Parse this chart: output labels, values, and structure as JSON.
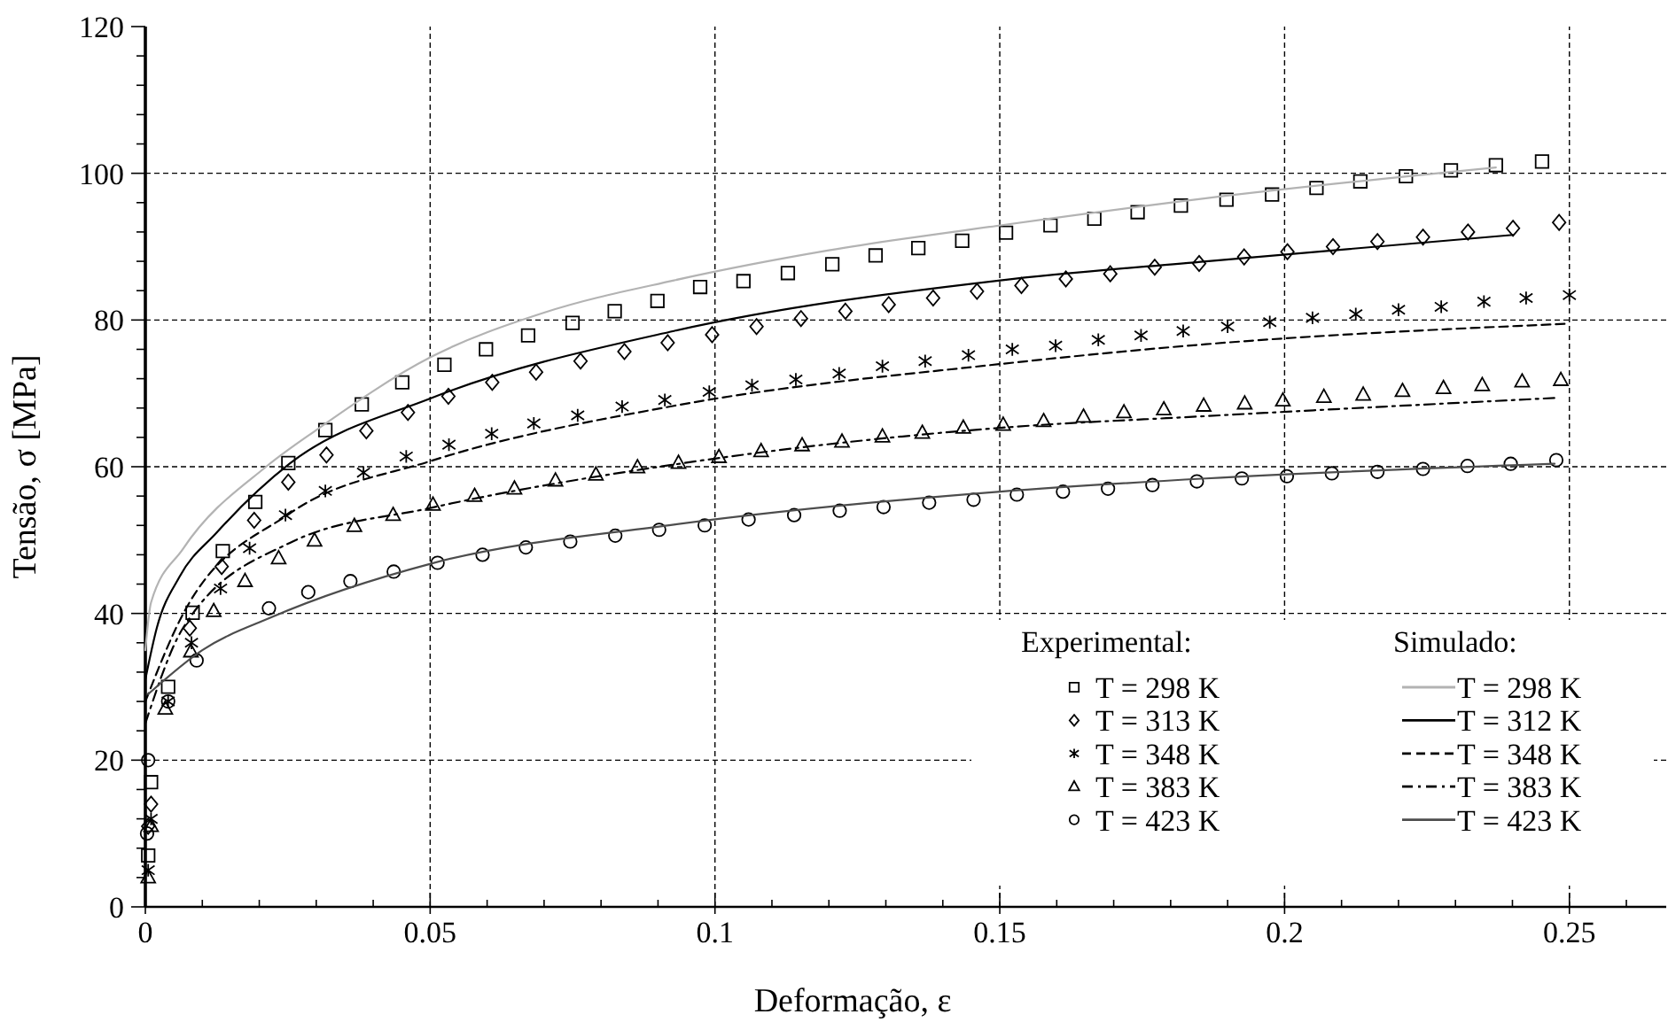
{
  "chart_data": {
    "type": "scatter",
    "xlabel": "Deformação, ε",
    "ylabel": "Tensão, σ [MPa]",
    "legend_title": "Experimental:",
    "annotations": [
      "Simulado:"
    ],
    "xlim": [
      0,
      0.267
    ],
    "ylim": [
      0,
      120
    ],
    "xticks": [
      0,
      {
        "value": 0.01,
        "label": null
      },
      {
        "value": 0.02,
        "label": null
      },
      {
        "value": 0.03,
        "label": null
      },
      {
        "value": 0.04,
        "label": null
      },
      0.05,
      {
        "value": 0.06,
        "label": null
      },
      {
        "value": 0.07,
        "label": null
      },
      {
        "value": 0.08,
        "label": null
      },
      {
        "value": 0.09,
        "label": null
      },
      0.1,
      {
        "value": 0.11,
        "label": null
      },
      {
        "value": 0.12,
        "label": null
      },
      {
        "value": 0.13,
        "label": null
      },
      {
        "value": 0.14,
        "label": null
      },
      0.15,
      {
        "value": 0.16,
        "label": null
      },
      {
        "value": 0.17,
        "label": null
      },
      {
        "value": 0.18,
        "label": null
      },
      {
        "value": 0.19,
        "label": null
      },
      0.2,
      {
        "value": 0.21,
        "label": null
      },
      {
        "value": 0.22,
        "label": null
      },
      {
        "value": 0.23,
        "label": null
      },
      {
        "value": 0.24,
        "label": null
      },
      0.25,
      {
        "value": 0.26,
        "label": null
      }
    ],
    "yticks": [
      0,
      {
        "value": 4,
        "label": null
      },
      {
        "value": 8,
        "label": null
      },
      {
        "value": 12,
        "label": null
      },
      {
        "value": 16,
        "label": null
      },
      20,
      {
        "value": 24,
        "label": null
      },
      {
        "value": 28,
        "label": null
      },
      {
        "value": 32,
        "label": null
      },
      {
        "value": 36,
        "label": null
      },
      40,
      {
        "value": 44,
        "label": null
      },
      {
        "value": 48,
        "label": null
      },
      {
        "value": 52,
        "label": null
      },
      {
        "value": 56,
        "label": null
      },
      60,
      {
        "value": 64,
        "label": null
      },
      {
        "value": 68,
        "label": null
      },
      {
        "value": 72,
        "label": null
      },
      {
        "value": 76,
        "label": null
      },
      80,
      {
        "value": 84,
        "label": null
      },
      {
        "value": 88,
        "label": null
      },
      {
        "value": 92,
        "label": null
      },
      {
        "value": 96,
        "label": null
      },
      100,
      {
        "value": 104,
        "label": null
      },
      {
        "value": 108,
        "label": null
      },
      {
        "value": 112,
        "label": null
      },
      {
        "value": 116,
        "label": null
      },
      120
    ],
    "grid": true,
    "legend": "bottom right",
    "series": [
      {
        "name": "T = 298 K",
        "marker": "square",
        "color": "#000000",
        "x": [
          0.0005,
          0.001,
          0.004,
          0.0083,
          0.0136,
          0.0193,
          0.0251,
          0.0316,
          0.038,
          0.0451,
          0.0525,
          0.0598,
          0.0672,
          0.075,
          0.0824,
          0.0899,
          0.0974,
          0.105,
          0.1128,
          0.1206,
          0.1282,
          0.1357,
          0.1434,
          0.1511,
          0.1589,
          0.1666,
          0.1742,
          0.1818,
          0.1898,
          0.1978,
          0.2056,
          0.2133,
          0.2213,
          0.2292,
          0.2371,
          0.2452
        ],
        "values": [
          7,
          17,
          30,
          40.1,
          48.5,
          55.2,
          60.5,
          65.0,
          68.5,
          71.5,
          73.9,
          76.0,
          77.9,
          79.6,
          81.2,
          82.6,
          84.5,
          85.3,
          86.4,
          87.6,
          88.8,
          89.8,
          90.8,
          91.9,
          92.9,
          93.8,
          94.7,
          95.6,
          96.4,
          97.1,
          98.0,
          98.9,
          99.6,
          100.4,
          101.1,
          101.6
        ]
      },
      {
        "name": "T = 313 K",
        "marker": "diamond",
        "color": "#000000",
        "x": [
          0.0005,
          0.001,
          0.0078,
          0.0134,
          0.0191,
          0.0251,
          0.0318,
          0.0388,
          0.0461,
          0.0532,
          0.0609,
          0.0686,
          0.0764,
          0.0841,
          0.0917,
          0.0995,
          0.1073,
          0.1151,
          0.1229,
          0.1305,
          0.1383,
          0.146,
          0.1538,
          0.1616,
          0.1694,
          0.1772,
          0.185,
          0.1929,
          0.2005,
          0.2085,
          0.2163,
          0.2243,
          0.2322,
          0.2401,
          0.2482
        ],
        "values": [
          11,
          14,
          38,
          46.4,
          52.7,
          57.9,
          61.6,
          64.9,
          67.4,
          69.6,
          71.5,
          72.9,
          74.4,
          75.7,
          76.9,
          78.0,
          79.1,
          80.2,
          81.2,
          82.1,
          83.0,
          83.9,
          84.7,
          85.6,
          86.3,
          87.2,
          87.7,
          88.6,
          89.3,
          90.0,
          90.7,
          91.3,
          92.0,
          92.5,
          93.3
        ]
      },
      {
        "name": "T = 348 K",
        "marker": "cross",
        "color": "#000000",
        "x": [
          0.0005,
          0.001,
          0.004,
          0.0081,
          0.0132,
          0.0183,
          0.0246,
          0.0316,
          0.0383,
          0.0458,
          0.0533,
          0.0608,
          0.0682,
          0.0759,
          0.0837,
          0.0912,
          0.099,
          0.1065,
          0.1142,
          0.1218,
          0.1294,
          0.1369,
          0.1445,
          0.1522,
          0.1598,
          0.1673,
          0.1748,
          0.1822,
          0.19,
          0.1974,
          0.2049,
          0.2125,
          0.22,
          0.2275,
          0.235,
          0.2424,
          0.25
        ],
        "values": [
          5,
          12,
          28,
          36,
          43.4,
          48.9,
          53.4,
          56.7,
          59.2,
          61.4,
          63.0,
          64.5,
          65.9,
          67.0,
          68.2,
          69.1,
          70.2,
          71.1,
          71.9,
          72.7,
          73.7,
          74.4,
          75.2,
          76.0,
          76.5,
          77.3,
          77.9,
          78.5,
          79.1,
          79.7,
          80.3,
          80.8,
          81.4,
          81.8,
          82.5,
          83.0,
          83.4
        ]
      },
      {
        "name": "T = 383 K",
        "marker": "triangle",
        "color": "#000000",
        "x": [
          0.0005,
          0.001,
          0.0035,
          0.008,
          0.012,
          0.0175,
          0.0234,
          0.0297,
          0.0367,
          0.0435,
          0.0505,
          0.0578,
          0.0648,
          0.072,
          0.0791,
          0.0864,
          0.0936,
          0.1007,
          0.1081,
          0.1153,
          0.1223,
          0.1294,
          0.1364,
          0.1436,
          0.1506,
          0.1577,
          0.1647,
          0.1718,
          0.1788,
          0.1858,
          0.193,
          0.1997,
          0.2069,
          0.2138,
          0.2207,
          0.2279,
          0.2347,
          0.2417,
          0.2485
        ],
        "values": [
          4,
          11,
          27,
          34.8,
          40.3,
          44.4,
          47.5,
          49.9,
          51.9,
          53.4,
          54.8,
          56.0,
          57.0,
          58.1,
          58.9,
          59.9,
          60.5,
          61.3,
          62.1,
          62.9,
          63.4,
          64.1,
          64.6,
          65.3,
          65.7,
          66.2,
          66.8,
          67.4,
          67.8,
          68.3,
          68.6,
          69.0,
          69.5,
          69.8,
          70.3,
          70.7,
          71.1,
          71.6,
          71.8
        ]
      },
      {
        "name": "T = 423 K",
        "marker": "circle",
        "color": "#000000",
        "x": [
          0.0003,
          0.0005,
          0.004,
          0.009,
          0.0217,
          0.0286,
          0.036,
          0.0436,
          0.0513,
          0.0592,
          0.0668,
          0.0746,
          0.0825,
          0.0902,
          0.0982,
          0.1059,
          0.1139,
          0.1219,
          0.1296,
          0.1376,
          0.1454,
          0.153,
          0.1611,
          0.169,
          0.1768,
          0.1846,
          0.1925,
          0.2004,
          0.2083,
          0.2163,
          0.2243,
          0.2321,
          0.2397,
          0.2477
        ],
        "values": [
          10,
          20,
          28,
          33.6,
          40.7,
          42.9,
          44.4,
          45.7,
          46.9,
          48.0,
          49.0,
          49.8,
          50.6,
          51.4,
          52.0,
          52.8,
          53.4,
          54.0,
          54.5,
          55.1,
          55.5,
          56.2,
          56.6,
          57.0,
          57.5,
          58.0,
          58.4,
          58.7,
          59.1,
          59.3,
          59.7,
          60.1,
          60.4,
          60.9
        ]
      },
      {
        "name": "T = 298 K",
        "type": "line",
        "line_style": "solid",
        "color": "#b3b3b3",
        "x": [
          0,
          0.001,
          0.0066,
          0.0212,
          0.03,
          0.05,
          0.07,
          0.0928,
          0.12,
          0.1501,
          0.1862,
          0.2371
        ],
        "values": [
          35,
          41.5,
          48.8,
          60.0,
          65,
          74.9,
          81,
          85.4,
          89.5,
          92.9,
          96.6,
          100.8
        ]
      },
      {
        "name": "T = 312 K",
        "type": "line",
        "line_style": "solid",
        "color": "#000000",
        "x": [
          0,
          0.002,
          0.006,
          0.0125,
          0.0253,
          0.05,
          0.0928,
          0.1501,
          0.1862,
          0.2401
        ],
        "values": [
          31,
          38,
          45,
          51,
          60.4,
          69.3,
          78.5,
          85.4,
          88.0,
          91.6
        ]
      },
      {
        "name": "T = 348 K",
        "type": "line",
        "line_style": "dashed",
        "color": "#000000",
        "x": [
          0,
          0.0066,
          0.0253,
          0.0502,
          0.0928,
          0.1501,
          0.1862,
          0.25
        ],
        "values": [
          28,
          39.9,
          53.6,
          60.8,
          68.3,
          74.0,
          76.7,
          79.5
        ]
      },
      {
        "name": "T = 383 K",
        "type": "line",
        "line_style": "dashdot",
        "color": "#000000",
        "x": [
          0,
          0.0066,
          0.0253,
          0.0502,
          0.0928,
          0.1501,
          0.1862,
          0.2482
        ],
        "values": [
          25,
          38,
          49.6,
          54.4,
          60.3,
          65.3,
          66.9,
          69.4
        ]
      },
      {
        "name": "T = 423 K",
        "type": "line",
        "line_style": "solid",
        "color": "#4d4d4d",
        "x": [
          0.0005,
          0.01,
          0.0222,
          0.0502,
          0.0928,
          0.1501,
          0.1862,
          0.2474
        ],
        "values": [
          29,
          35,
          39.5,
          46.8,
          52.1,
          56.6,
          58.4,
          60.4
        ]
      }
    ]
  }
}
